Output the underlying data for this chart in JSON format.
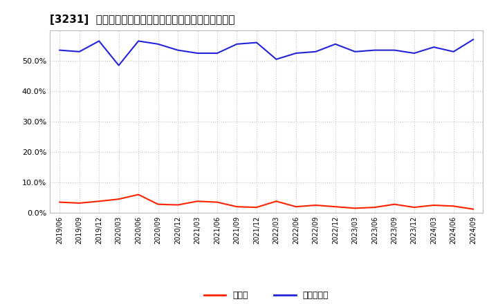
{
  "title": "[3231]  現須金、有利子負債の総資産に対する比率の推移",
  "x_labels": [
    "2019/06",
    "2019/09",
    "2019/12",
    "2020/03",
    "2020/06",
    "2020/09",
    "2020/12",
    "2021/03",
    "2021/06",
    "2021/09",
    "2021/12",
    "2022/03",
    "2022/06",
    "2022/09",
    "2022/12",
    "2023/03",
    "2023/06",
    "2023/09",
    "2023/12",
    "2024/03",
    "2024/06",
    "2024/09"
  ],
  "cash": [
    3.5,
    3.2,
    3.8,
    4.5,
    6.0,
    2.8,
    2.6,
    3.8,
    3.5,
    2.0,
    1.8,
    3.8,
    2.0,
    2.5,
    2.0,
    1.5,
    1.8,
    2.8,
    1.8,
    2.5,
    2.2,
    1.2
  ],
  "debt": [
    53.5,
    53.0,
    56.5,
    48.5,
    56.5,
    55.5,
    53.5,
    52.5,
    52.5,
    55.5,
    56.0,
    50.5,
    52.5,
    53.0,
    55.5,
    53.0,
    53.5,
    53.5,
    52.5,
    54.5,
    53.0,
    57.0
  ],
  "cash_color": "#ff2200",
  "debt_color": "#2222dd",
  "bg_color": "#ffffff",
  "plot_bg_color": "#ffffff",
  "grid_color": "#999999",
  "legend_cash": "現須金",
  "legend_debt": "有利子負債",
  "ylim": [
    0,
    60
  ],
  "yticks": [
    0,
    10,
    20,
    30,
    40,
    50
  ],
  "title_fontsize": 11,
  "line_width": 1.5
}
